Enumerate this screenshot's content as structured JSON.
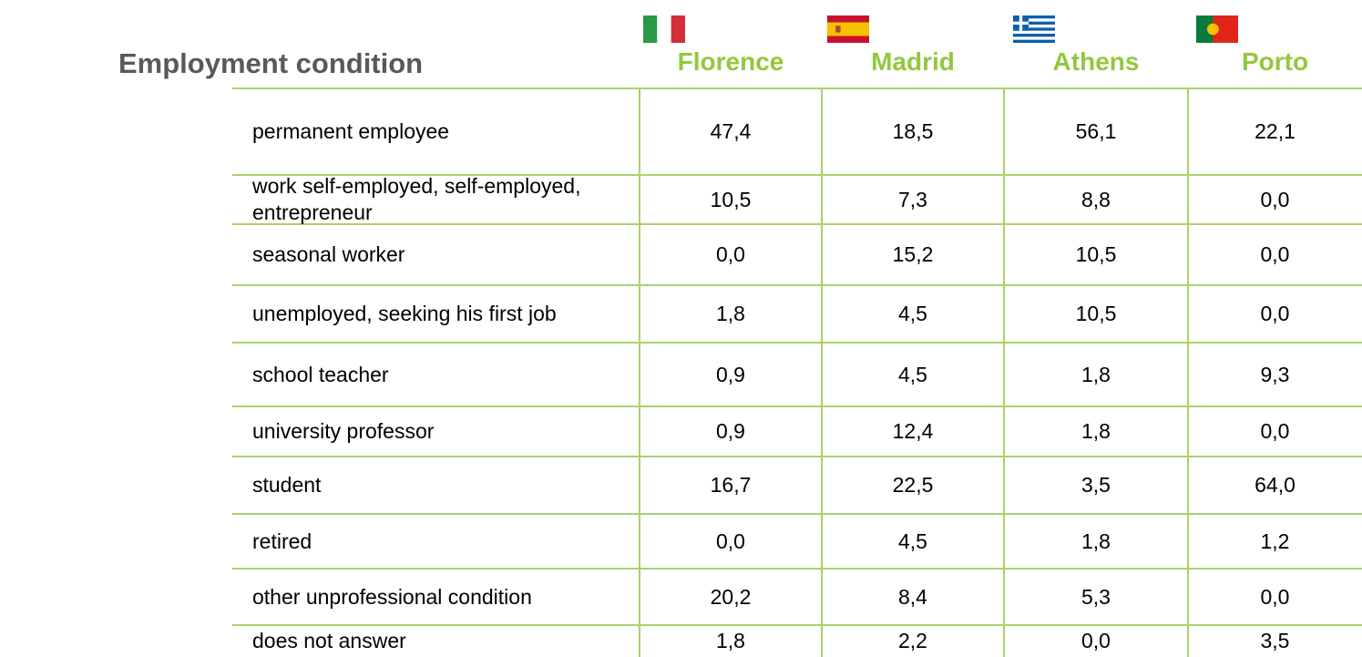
{
  "title": "Employment condition",
  "columns": [
    {
      "name": "Florence"
    },
    {
      "name": "Madrid"
    },
    {
      "name": "Athens"
    },
    {
      "name": "Porto"
    }
  ],
  "rows": [
    {
      "label": "permanent employee",
      "values": [
        "47,4",
        "18,5",
        "56,1",
        "22,1"
      ]
    },
    {
      "label": "work self-employed, self-employed, entrepreneur",
      "values": [
        "10,5",
        "7,3",
        "8,8",
        "0,0"
      ]
    },
    {
      "label": "seasonal worker",
      "values": [
        "0,0",
        "15,2",
        "10,5",
        "0,0"
      ]
    },
    {
      "label": "unemployed, seeking his first job",
      "values": [
        "1,8",
        "4,5",
        "10,5",
        "0,0"
      ]
    },
    {
      "label": "school teacher",
      "values": [
        "0,9",
        "4,5",
        "1,8",
        "9,3"
      ]
    },
    {
      "label": "university professor",
      "values": [
        "0,9",
        "12,4",
        "1,8",
        "0,0"
      ]
    },
    {
      "label": "student",
      "values": [
        "16,7",
        "22,5",
        "3,5",
        "64,0"
      ]
    },
    {
      "label": "retired",
      "values": [
        "0,0",
        "4,5",
        "1,8",
        "1,2"
      ]
    },
    {
      "label": "other unprofessional condition",
      "values": [
        "20,2",
        "8,4",
        "5,3",
        "0,0"
      ]
    },
    {
      "label": "does not answer",
      "values": [
        "1,8",
        "2,2",
        "0,0",
        "3,5"
      ]
    }
  ]
}
